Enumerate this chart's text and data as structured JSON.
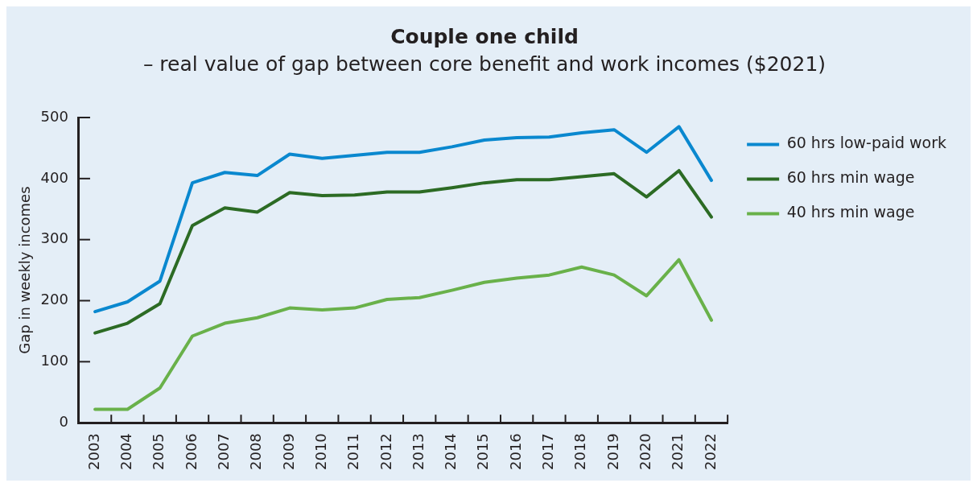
{
  "chart_data": {
    "type": "line",
    "title": "Couple one child",
    "subtitle": "– real value of gap between core benefit and work incomes ($2021)",
    "ylabel": "Gap in weekly incomes",
    "categories": [
      "2003",
      "2004",
      "2005",
      "2006",
      "2007",
      "2008",
      "2009",
      "2010",
      "2011",
      "2012",
      "2013",
      "2014",
      "2015",
      "2016",
      "2017",
      "2018",
      "2019",
      "2020",
      "2021",
      "2022"
    ],
    "series": [
      {
        "name": "60 hrs low-paid work",
        "color": "#0a88cf",
        "values": [
          182,
          198,
          232,
          393,
          410,
          405,
          440,
          433,
          438,
          443,
          443,
          452,
          463,
          467,
          468,
          475,
          480,
          443,
          485,
          397
        ]
      },
      {
        "name": "60 hrs min wage",
        "color": "#2c6b24",
        "values": [
          147,
          163,
          195,
          323,
          352,
          345,
          377,
          372,
          373,
          378,
          378,
          385,
          393,
          398,
          398,
          403,
          408,
          370,
          413,
          337
        ]
      },
      {
        "name": "40 hrs min wage",
        "color": "#69b14a",
        "values": [
          22,
          22,
          57,
          142,
          163,
          172,
          188,
          185,
          188,
          202,
          205,
          217,
          230,
          237,
          242,
          255,
          242,
          208,
          267,
          168
        ]
      }
    ],
    "ylim": [
      0,
      500
    ],
    "yticks": [
      0,
      100,
      200,
      300,
      400,
      500
    ],
    "grid": false,
    "legend": "right",
    "marker": "none",
    "line_style": "solid"
  }
}
